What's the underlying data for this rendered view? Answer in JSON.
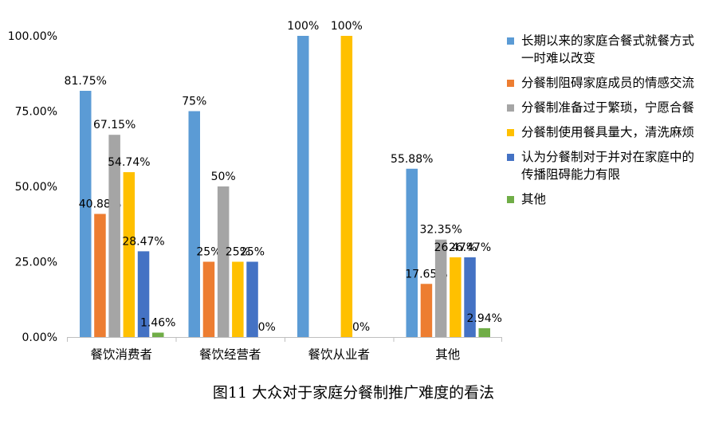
{
  "caption": "图11  大众对于家庭分餐制推广难度的看法",
  "chart_data": {
    "type": "bar",
    "title": "",
    "xlabel": "",
    "ylabel": "",
    "ylim": [
      0,
      100
    ],
    "yticks": [
      "0.00%",
      "25.00%",
      "50.00%",
      "75.00%",
      "100.00%"
    ],
    "grid": false,
    "legend_position": "right",
    "categories": [
      "餐饮消费者",
      "餐饮经营者",
      "餐饮从业者",
      "其他"
    ],
    "series": [
      {
        "name": "长期以来的家庭合餐式就餐方式一时难以改变",
        "color": "#5B9BD5",
        "values": [
          81.75,
          75,
          100,
          55.88
        ],
        "labels": [
          "81.75%",
          "75%",
          "100%",
          "55.88%"
        ]
      },
      {
        "name": "分餐制阻碍家庭成员的情感交流",
        "color": "#ED7D31",
        "values": [
          40.88,
          25,
          0,
          17.65
        ],
        "labels": [
          "40.88%",
          "25%",
          "",
          "17.65%"
        ]
      },
      {
        "name": "分餐制准备过于繁琐，宁愿合餐",
        "color": "#A5A5A5",
        "values": [
          67.15,
          50,
          0,
          32.35
        ],
        "labels": [
          "67.15%",
          "50%",
          "",
          "32.35%"
        ]
      },
      {
        "name": "分餐制使用餐具量大，清洗麻烦",
        "color": "#FFC000",
        "values": [
          54.74,
          25,
          100,
          26.47
        ],
        "labels": [
          "54.74%",
          "25%",
          "100%",
          "26.47%"
        ]
      },
      {
        "name": "认为分餐制对于并对在家庭中的传播阻碍能力有限",
        "color": "#4472C4",
        "values": [
          28.47,
          25,
          0,
          26.47
        ],
        "labels": [
          "28.47%",
          "25%",
          "0%",
          "26.47%"
        ]
      },
      {
        "name": "其他",
        "color": "#70AD47",
        "values": [
          1.46,
          0,
          0,
          2.94
        ],
        "labels": [
          "1.46%",
          "0%",
          "",
          "2.94%"
        ]
      }
    ]
  }
}
